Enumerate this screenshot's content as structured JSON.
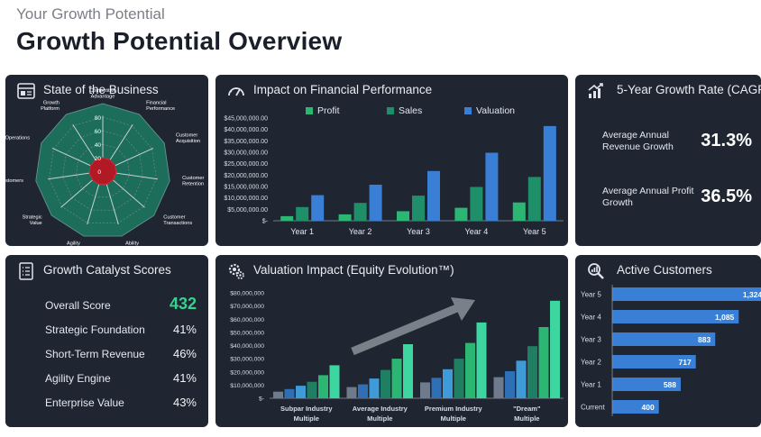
{
  "header": {
    "kicker": "Your Growth Potential",
    "title": "Growth Potential Overview"
  },
  "state_panel": {
    "title": "State of the Business",
    "icon": "document-report-icon"
  },
  "impact_panel": {
    "title": "Impact on Financial Performance",
    "icon": "speedometer-icon"
  },
  "cagr_panel": {
    "title": "5-Year Growth Rate (CAGR)",
    "icon": "growth-bars-icon",
    "rows": [
      {
        "label": "Average Annual Revenue Growth",
        "value": "31.3%"
      },
      {
        "label": "Average Annual Profit Growth",
        "value": "36.5%"
      }
    ]
  },
  "score_panel": {
    "title": "Growth Catalyst Scores",
    "icon": "checklist-icon",
    "rows": [
      {
        "label": "Overall Score",
        "value": "432"
      },
      {
        "label": "Strategic Foundation",
        "value": "41%"
      },
      {
        "label": "Short-Term Revenue",
        "value": "46%"
      },
      {
        "label": "Agility Engine",
        "value": "41%"
      },
      {
        "label": "Enterprise Value",
        "value": "43%"
      }
    ]
  },
  "valuation_panel": {
    "title": "Valuation Impact (Equity Evolution™)",
    "icon": "gears-icon"
  },
  "customers_panel": {
    "title": "Active Customers",
    "icon": "magnifier-chart-icon"
  },
  "colors": {
    "panel": "#1f2632",
    "profit": "#2bb673",
    "sales": "#1e8f69",
    "valuation": "#3a7fd6",
    "radar_outer": "#1c6e5a",
    "radar_inner": "#b11a24",
    "accent_score": "#35d38f",
    "customers_bar": "#3a7fd6"
  },
  "chart_data": [
    {
      "type": "radar",
      "categories": [
        "Competitive Advantage",
        "Financial Performance",
        "Customer Acquisition",
        "Customer Retention",
        "Customer Transactions",
        "Ability",
        "Agility",
        "Strategic Value",
        "Customers",
        "Operations",
        "Growth Platform"
      ],
      "radial_ticks": [
        "0",
        "20",
        "40",
        "60",
        "80"
      ],
      "rlim": [
        0,
        100
      ],
      "series": [
        {
          "values": [
            100,
            100,
            100,
            100,
            100,
            100,
            100,
            100,
            100,
            100,
            100
          ]
        },
        {
          "values": [
            20,
            20,
            20,
            20,
            20,
            20,
            20,
            20,
            20,
            20,
            20
          ]
        }
      ]
    },
    {
      "type": "bar",
      "categories": [
        "Year 1",
        "Year 2",
        "Year 3",
        "Year 4",
        "Year 5"
      ],
      "series": [
        {
          "name": "Profit",
          "values": [
            2000000,
            2800000,
            4200000,
            5700000,
            8000000
          ]
        },
        {
          "name": "Sales",
          "values": [
            6000000,
            7800000,
            11000000,
            14800000,
            19200000
          ]
        },
        {
          "name": "Valuation",
          "values": [
            11200000,
            15800000,
            21800000,
            29800000,
            41500000
          ]
        }
      ],
      "yticks": [
        "$45,000,000.00",
        "$40,000,000.00",
        "$35,000,000.00",
        "$30,000,000.00",
        "$25,000,000.00",
        "$20,000,000.00",
        "$15,000,000.00",
        "$10,000,000.00",
        "$5,000,000.00",
        "$-"
      ],
      "ylim": [
        0,
        45000000
      ],
      "legend": "top"
    },
    {
      "type": "bar",
      "categories": [
        "Subpar Industry Multiple",
        "Average Industry Multiple",
        "Premium Industry Multiple",
        "\"Dream\" Multiple"
      ],
      "series": [
        {
          "values": [
            5000000,
            8500000,
            12000000,
            16000000
          ]
        },
        {
          "values": [
            7000000,
            10500000,
            15500000,
            20500000
          ]
        },
        {
          "values": [
            9500000,
            15000000,
            22000000,
            28500000
          ]
        },
        {
          "values": [
            12500000,
            21500000,
            30000000,
            39500000
          ]
        },
        {
          "values": [
            17500000,
            30000000,
            42000000,
            54000000
          ]
        },
        {
          "values": [
            25000000,
            41000000,
            57500000,
            74000000
          ]
        }
      ],
      "yticks": [
        "$80,000,000",
        "$70,000,000",
        "$60,000,000",
        "$50,000,000",
        "$40,000,000",
        "$30,000,000",
        "$20,000,000",
        "$10,000,000",
        "$-"
      ],
      "ylim": [
        0,
        80000000
      ]
    },
    {
      "type": "bar",
      "orientation": "horizontal",
      "categories": [
        "Year 5",
        "Year 4",
        "Year 3",
        "Year 2",
        "Year 1",
        "Current"
      ],
      "values": [
        1324,
        1085,
        883,
        717,
        588,
        400
      ],
      "labels": [
        "1,324",
        "1,085",
        "883",
        "717",
        "588",
        "400"
      ],
      "xlim": [
        0,
        1400
      ]
    }
  ]
}
